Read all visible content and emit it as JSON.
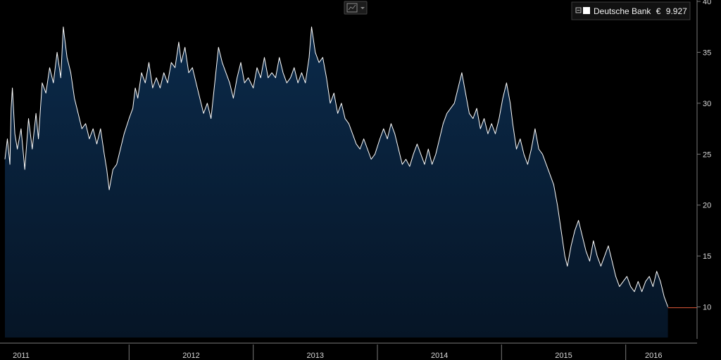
{
  "chart_data": {
    "type": "area",
    "x_tick_labels": [
      "2011",
      "2012",
      "2013",
      "2014",
      "2015",
      "2016"
    ],
    "y_ticks": [
      10,
      15,
      20,
      25,
      30,
      35,
      40
    ],
    "ylim": [
      7,
      40
    ],
    "xlim": [
      2011.0,
      2016.45
    ],
    "grid": false,
    "legend": {
      "position": "top-right",
      "entries": [
        {
          "name": "Deutsche Bank",
          "currency": "€",
          "last_value": "9.927"
        }
      ]
    },
    "series": [
      {
        "name": "Deutsche Bank",
        "points": [
          [
            2011.0,
            24.5
          ],
          [
            2011.02,
            26.5
          ],
          [
            2011.04,
            24.0
          ],
          [
            2011.05,
            29.5
          ],
          [
            2011.06,
            31.5
          ],
          [
            2011.08,
            27.0
          ],
          [
            2011.1,
            25.5
          ],
          [
            2011.13,
            27.5
          ],
          [
            2011.16,
            23.5
          ],
          [
            2011.19,
            28.5
          ],
          [
            2011.22,
            25.5
          ],
          [
            2011.25,
            29.0
          ],
          [
            2011.27,
            26.5
          ],
          [
            2011.3,
            32.0
          ],
          [
            2011.33,
            31.0
          ],
          [
            2011.36,
            33.5
          ],
          [
            2011.39,
            32.0
          ],
          [
            2011.42,
            35.0
          ],
          [
            2011.45,
            32.5
          ],
          [
            2011.47,
            37.5
          ],
          [
            2011.5,
            34.5
          ],
          [
            2011.53,
            33.0
          ],
          [
            2011.56,
            30.5
          ],
          [
            2011.59,
            29.0
          ],
          [
            2011.62,
            27.5
          ],
          [
            2011.65,
            28.0
          ],
          [
            2011.68,
            26.5
          ],
          [
            2011.71,
            27.5
          ],
          [
            2011.74,
            26.0
          ],
          [
            2011.77,
            27.5
          ],
          [
            2011.8,
            25.0
          ],
          [
            2011.82,
            23.5
          ],
          [
            2011.84,
            21.5
          ],
          [
            2011.87,
            23.5
          ],
          [
            2011.9,
            24.0
          ],
          [
            2011.93,
            25.5
          ],
          [
            2011.96,
            27.0
          ],
          [
            2012.0,
            28.5
          ],
          [
            2012.03,
            29.5
          ],
          [
            2012.05,
            31.5
          ],
          [
            2012.07,
            30.5
          ],
          [
            2012.1,
            33.0
          ],
          [
            2012.13,
            32.0
          ],
          [
            2012.16,
            34.0
          ],
          [
            2012.19,
            31.5
          ],
          [
            2012.22,
            32.5
          ],
          [
            2012.25,
            31.5
          ],
          [
            2012.28,
            33.0
          ],
          [
            2012.31,
            32.0
          ],
          [
            2012.34,
            34.0
          ],
          [
            2012.37,
            33.5
          ],
          [
            2012.4,
            36.0
          ],
          [
            2012.42,
            34.0
          ],
          [
            2012.45,
            35.5
          ],
          [
            2012.48,
            33.0
          ],
          [
            2012.51,
            33.5
          ],
          [
            2012.54,
            32.0
          ],
          [
            2012.57,
            30.5
          ],
          [
            2012.6,
            29.0
          ],
          [
            2012.63,
            30.0
          ],
          [
            2012.66,
            28.5
          ],
          [
            2012.69,
            32.0
          ],
          [
            2012.72,
            35.5
          ],
          [
            2012.75,
            34.0
          ],
          [
            2012.78,
            33.0
          ],
          [
            2012.81,
            32.0
          ],
          [
            2012.84,
            30.5
          ],
          [
            2012.87,
            32.5
          ],
          [
            2012.9,
            34.0
          ],
          [
            2012.93,
            32.0
          ],
          [
            2012.96,
            32.5
          ],
          [
            2013.0,
            31.5
          ],
          [
            2013.03,
            33.5
          ],
          [
            2013.06,
            32.5
          ],
          [
            2013.09,
            34.5
          ],
          [
            2013.12,
            32.5
          ],
          [
            2013.15,
            33.0
          ],
          [
            2013.18,
            32.5
          ],
          [
            2013.21,
            34.5
          ],
          [
            2013.24,
            33.0
          ],
          [
            2013.27,
            32.0
          ],
          [
            2013.3,
            32.5
          ],
          [
            2013.33,
            33.5
          ],
          [
            2013.36,
            32.0
          ],
          [
            2013.39,
            33.0
          ],
          [
            2013.42,
            32.0
          ],
          [
            2013.45,
            34.5
          ],
          [
            2013.47,
            37.5
          ],
          [
            2013.5,
            35.0
          ],
          [
            2013.53,
            34.0
          ],
          [
            2013.56,
            34.5
          ],
          [
            2013.59,
            32.5
          ],
          [
            2013.62,
            30.0
          ],
          [
            2013.65,
            31.0
          ],
          [
            2013.68,
            29.0
          ],
          [
            2013.71,
            30.0
          ],
          [
            2013.74,
            28.5
          ],
          [
            2013.77,
            28.0
          ],
          [
            2013.8,
            27.0
          ],
          [
            2013.83,
            26.0
          ],
          [
            2013.86,
            25.5
          ],
          [
            2013.89,
            26.5
          ],
          [
            2013.92,
            25.5
          ],
          [
            2013.95,
            24.5
          ],
          [
            2013.98,
            25.0
          ],
          [
            2014.02,
            26.5
          ],
          [
            2014.05,
            27.5
          ],
          [
            2014.08,
            26.5
          ],
          [
            2014.11,
            28.0
          ],
          [
            2014.14,
            27.0
          ],
          [
            2014.17,
            25.5
          ],
          [
            2014.2,
            24.0
          ],
          [
            2014.23,
            24.5
          ],
          [
            2014.26,
            23.8
          ],
          [
            2014.29,
            25.0
          ],
          [
            2014.32,
            26.0
          ],
          [
            2014.35,
            25.0
          ],
          [
            2014.38,
            24.0
          ],
          [
            2014.41,
            25.5
          ],
          [
            2014.44,
            24.0
          ],
          [
            2014.47,
            25.0
          ],
          [
            2014.5,
            26.5
          ],
          [
            2014.53,
            28.0
          ],
          [
            2014.56,
            29.0
          ],
          [
            2014.59,
            29.5
          ],
          [
            2014.62,
            30.0
          ],
          [
            2014.65,
            31.5
          ],
          [
            2014.68,
            33.0
          ],
          [
            2014.71,
            31.0
          ],
          [
            2014.74,
            29.0
          ],
          [
            2014.77,
            28.5
          ],
          [
            2014.8,
            29.5
          ],
          [
            2014.83,
            27.5
          ],
          [
            2014.86,
            28.5
          ],
          [
            2014.89,
            27.0
          ],
          [
            2014.92,
            28.0
          ],
          [
            2014.95,
            27.0
          ],
          [
            2014.98,
            28.5
          ],
          [
            2015.01,
            30.5
          ],
          [
            2015.04,
            32.0
          ],
          [
            2015.07,
            30.0
          ],
          [
            2015.09,
            28.0
          ],
          [
            2015.12,
            25.5
          ],
          [
            2015.15,
            26.5
          ],
          [
            2015.18,
            25.0
          ],
          [
            2015.21,
            24.0
          ],
          [
            2015.24,
            25.5
          ],
          [
            2015.27,
            27.5
          ],
          [
            2015.3,
            25.5
          ],
          [
            2015.33,
            25.0
          ],
          [
            2015.36,
            24.0
          ],
          [
            2015.39,
            23.0
          ],
          [
            2015.42,
            22.0
          ],
          [
            2015.45,
            20.0
          ],
          [
            2015.48,
            17.5
          ],
          [
            2015.51,
            15.0
          ],
          [
            2015.53,
            14.0
          ],
          [
            2015.56,
            16.0
          ],
          [
            2015.59,
            17.5
          ],
          [
            2015.62,
            18.5
          ],
          [
            2015.65,
            17.0
          ],
          [
            2015.68,
            15.5
          ],
          [
            2015.71,
            14.5
          ],
          [
            2015.74,
            16.5
          ],
          [
            2015.77,
            15.0
          ],
          [
            2015.8,
            14.0
          ],
          [
            2015.83,
            15.0
          ],
          [
            2015.86,
            16.0
          ],
          [
            2015.89,
            14.5
          ],
          [
            2015.92,
            13.0
          ],
          [
            2015.95,
            12.0
          ],
          [
            2015.98,
            12.5
          ],
          [
            2016.01,
            13.0
          ],
          [
            2016.04,
            12.0
          ],
          [
            2016.07,
            11.5
          ],
          [
            2016.1,
            12.5
          ],
          [
            2016.13,
            11.5
          ],
          [
            2016.16,
            12.5
          ],
          [
            2016.19,
            13.0
          ],
          [
            2016.22,
            12.0
          ],
          [
            2016.25,
            13.5
          ],
          [
            2016.28,
            12.5
          ],
          [
            2016.31,
            11.0
          ],
          [
            2016.34,
            10.0
          ]
        ]
      }
    ],
    "last_marker": {
      "value": 9.927,
      "color": "#e05a3a"
    }
  },
  "colors": {
    "background": "#000000",
    "area_fill": "#0b2a4a",
    "area_fill_bottom": "#061526",
    "line": "#ffffff",
    "axis": "#7a7a7a",
    "tick_text": "#d8d8d8"
  },
  "toolbar": {
    "chart_type_icon": "line-chart-icon",
    "dropdown_icon": "chevron-down-icon"
  }
}
